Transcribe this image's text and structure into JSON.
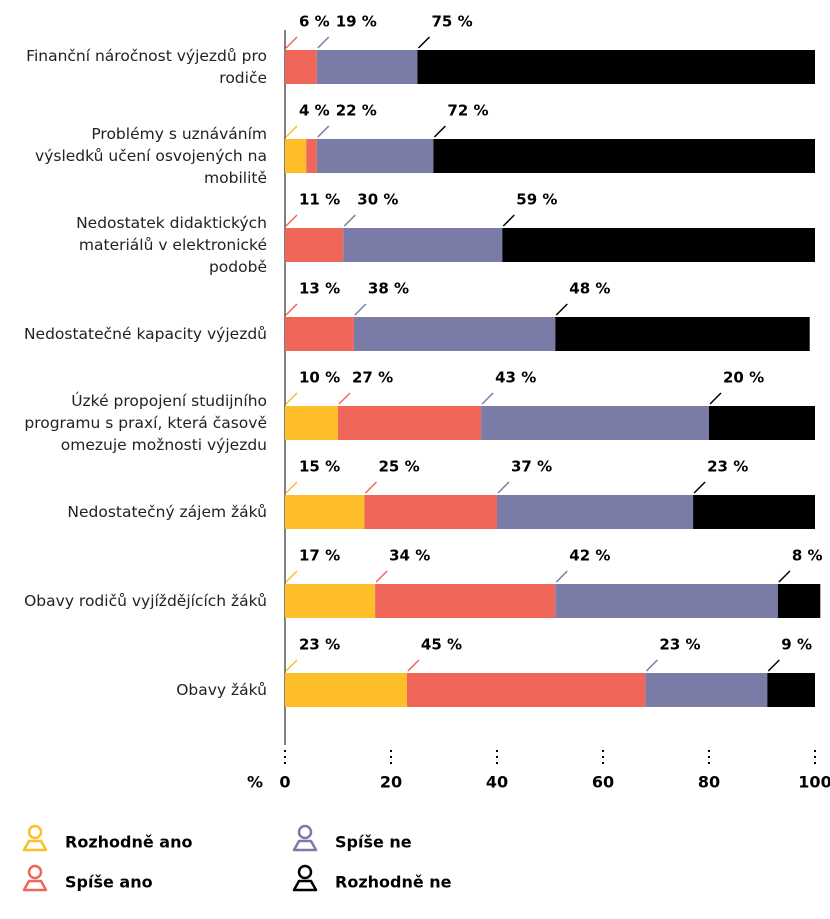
{
  "chart_data": {
    "type": "stacked-barh",
    "categories": [
      "Finanční náročnost výjezdů pro rodiče",
      "Problémy s uznáváním výsledků učení osvojených na mobilitě",
      "Nedostatek didaktických materiálů v elektronické podobě",
      "Nedostatečné kapacity výjezdů",
      "Úzké propojení studijního programu s praxí, která časově omezuje možnosti výjezdu",
      "Nedostatečný zájem žáků",
      "Obavy rodičů vyjíždějících žáků",
      "Obavy žáků"
    ],
    "series": [
      {
        "name": "Rozhodně ano",
        "color": "#fdbe2a",
        "values": [
          null,
          4,
          null,
          null,
          10,
          15,
          17,
          23
        ],
        "value_labels": [
          null,
          "4 %",
          null,
          null,
          "10 %",
          "15 %",
          "17 %",
          "23 %"
        ]
      },
      {
        "name": "Spíše ano",
        "color": "#f0675a",
        "values": [
          6,
          2,
          11,
          13,
          27,
          25,
          34,
          45
        ],
        "value_labels": [
          "6 %",
          null,
          "11 %",
          "13 %",
          "27 %",
          "25 %",
          "34 %",
          "45 %"
        ]
      },
      {
        "name": "Spíše ne",
        "color": "#7b7ba8",
        "values": [
          19,
          22,
          30,
          38,
          43,
          37,
          42,
          23
        ],
        "value_labels": [
          "19 %",
          "22 %",
          "30 %",
          "38 %",
          "43 %",
          "37 %",
          "42 %",
          "23 %"
        ]
      },
      {
        "name": "Rozhodně ne",
        "color": "#000000",
        "values": [
          75,
          72,
          59,
          48,
          20,
          23,
          8,
          9
        ],
        "value_labels": [
          "75 %",
          "72 %",
          "59 %",
          "48 %",
          "20 %",
          "23 %",
          "8 %",
          "9 %"
        ]
      }
    ],
    "x_label": "%",
    "xlim": [
      0,
      100
    ],
    "xticks": [
      0,
      20,
      40,
      60,
      80,
      100
    ]
  }
}
